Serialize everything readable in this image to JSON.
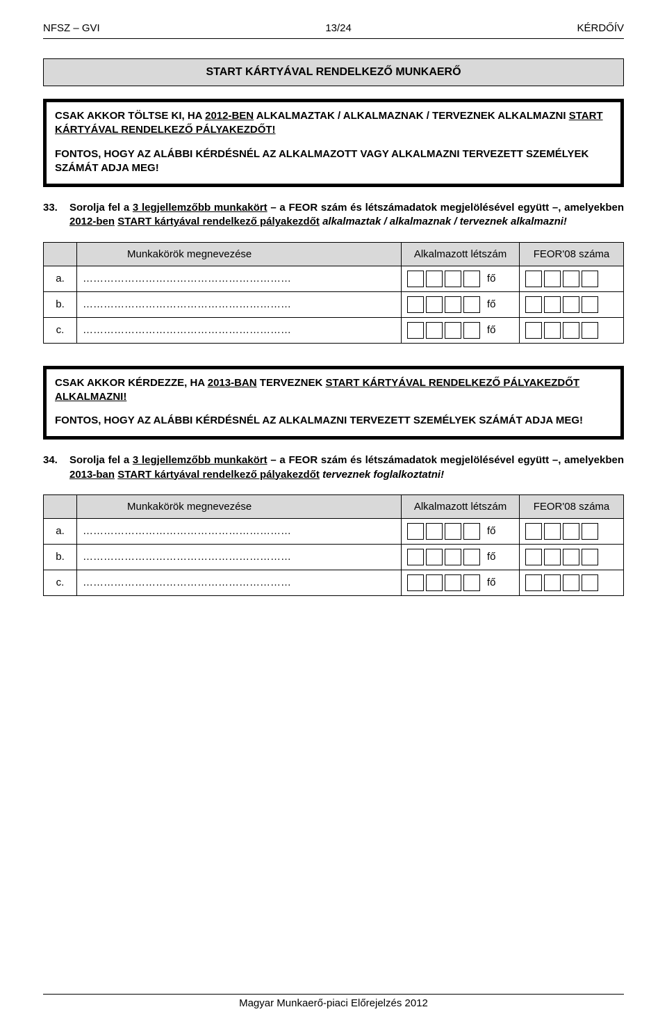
{
  "header": {
    "left": "NFSZ – GVI",
    "center": "13/24",
    "right": "KÉRDŐÍV"
  },
  "section_title": "START KÁRTYÁVAL RENDELKEZŐ MUNKAERŐ",
  "box1": {
    "p1_a": "CSAK AKKOR TÖLTSE KI, HA ",
    "p1_u": "2012-BEN",
    "p1_b": " ALKALMAZTAK / ALKALMAZNAK / TERVEZNEK ALKALMAZNI ",
    "p1_u2": "START KÁRTYÁVAL RENDELKEZŐ PÁLYAKEZDŐT!",
    "p2": "FONTOS, HOGY AZ ALÁBBI KÉRDÉSNÉL AZ ALKALMAZOTT VAGY ALKALMAZNI TERVEZETT SZEMÉLYEK SZÁMÁT ADJA MEG!"
  },
  "q33": {
    "num": "33.",
    "t1": "Sorolja fel a ",
    "u1": "3 legjellemzőbb munkakört",
    "t2": " – a FEOR szám és létszámadatok megjelölésével együtt –, amelyekben ",
    "u2": "2012-ben",
    "t3": " ",
    "u3": "START kártyával rendelkező pályakezdőt",
    "t4": " ",
    "i1": "alkalmaztak / alkalmaznak / terveznek alkalmazni!"
  },
  "table": {
    "col_name": "Munkakörök megnevezése",
    "col_count": "Alkalmazott létszám",
    "col_feor": "FEOR'08 száma",
    "row_letters": [
      "a.",
      "b.",
      "c."
    ],
    "dots": "……………………………………………………",
    "unit": "fő",
    "count_boxes": 4,
    "feor_boxes": 4
  },
  "box2": {
    "p1_a": "CSAK AKKOR KÉRDEZZE, HA ",
    "p1_u": "2013-BAN",
    "p1_b": " TERVEZNEK ",
    "p1_u2": "START KÁRTYÁVAL RENDELKEZŐ PÁLYAKEZDŐT ALKALMAZNI!",
    "p2": "FONTOS, HOGY AZ ALÁBBI KÉRDÉSNÉL AZ ALKALMAZNI TERVEZETT SZEMÉLYEK SZÁMÁT ADJA MEG!"
  },
  "q34": {
    "num": "34.",
    "t1": "Sorolja fel a ",
    "u1": "3 legjellemzőbb munkakört",
    "t2": " – a FEOR szám és létszámadatok megjelölésével együtt –, amelyekben ",
    "u2": "2013-ban",
    "t3": " ",
    "u3": "START kártyával rendelkező pályakezdőt",
    "t4": " ",
    "i1": "terveznek foglalkoztatni!"
  },
  "footer": "Magyar Munkaerő-piaci Előrejelzés 2012",
  "colors": {
    "gray_fill": "#d9d9d9",
    "border": "#000000",
    "text": "#000000",
    "bg": "#ffffff"
  }
}
